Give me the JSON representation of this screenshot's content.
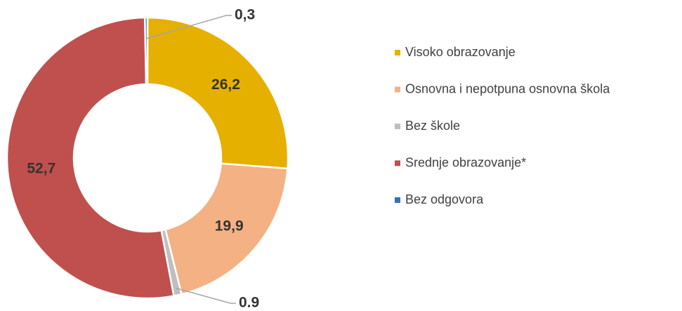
{
  "chart_data": {
    "type": "donut",
    "categories": [
      "Visoko obrazovanje",
      "Osnovna i nepotpuna osnovna škola",
      "Bez škole",
      "Srednje obrazovanje*",
      "Bez odgovora"
    ],
    "values": [
      26.2,
      19.9,
      0.9,
      52.7,
      0.3
    ],
    "value_labels": [
      "26,2",
      "19,9",
      "0.9",
      "52,7",
      "0,3"
    ],
    "colors": [
      "#e6b000",
      "#f4b183",
      "#bfbfbf",
      "#c0504d",
      "#2e75b6"
    ],
    "legend": "right"
  }
}
